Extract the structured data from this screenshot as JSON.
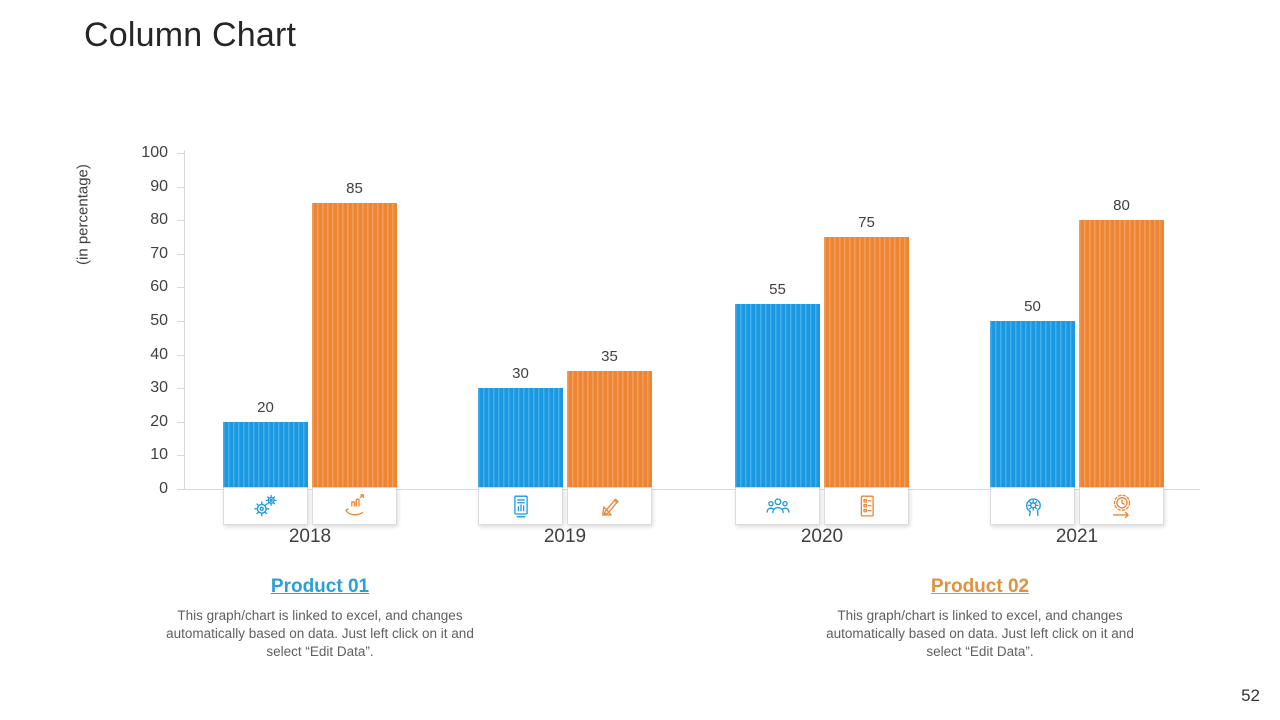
{
  "slide": {
    "title": "Column Chart",
    "page_number": "52"
  },
  "chart_data": {
    "type": "bar",
    "title": "",
    "xlabel": "",
    "ylabel": "(in percentage)",
    "ylim": [
      0,
      100
    ],
    "ytick_step": 10,
    "grid": false,
    "legend_position": "none",
    "value_labels": true,
    "categories": [
      "2018",
      "2019",
      "2020",
      "2021"
    ],
    "series": [
      {
        "name": "Product 01",
        "color": "#1899E2",
        "values": [
          20,
          30,
          55,
          50
        ]
      },
      {
        "name": "Product 02",
        "color": "#EE8533",
        "values": [
          85,
          35,
          75,
          80
        ]
      }
    ],
    "category_icons": [
      [
        "gears-icon",
        "growth-hand-icon"
      ],
      [
        "report-chart-icon",
        "design-tools-icon"
      ],
      [
        "team-icon",
        "checklist-icon"
      ],
      [
        "mind-gear-icon",
        "sprint-clock-icon"
      ]
    ],
    "axis_color": "#d9d9d9",
    "label_color": "#404040"
  },
  "products": [
    {
      "label": "Product 01",
      "color": "#2B9FD9",
      "description": "This graph/chart is linked to excel, and changes automatically based on data. Just left click on it and select “Edit Data”."
    },
    {
      "label": "Product 02",
      "color": "#E1913F",
      "description": "This graph/chart is linked to excel, and changes automatically based on data. Just left click on it and select “Edit Data”."
    }
  ]
}
